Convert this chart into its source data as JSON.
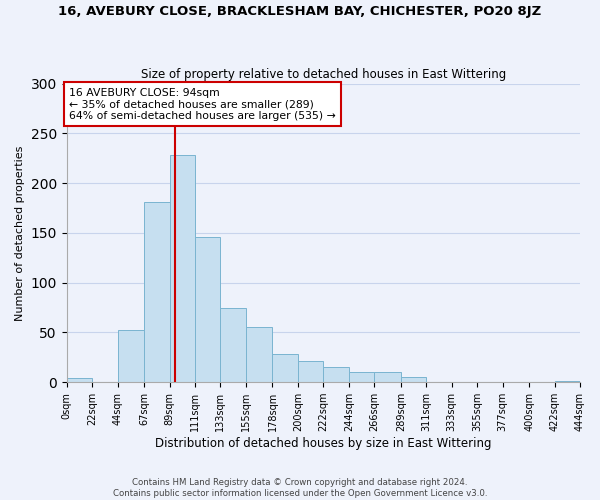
{
  "title": "16, AVEBURY CLOSE, BRACKLESHAM BAY, CHICHESTER, PO20 8JZ",
  "subtitle": "Size of property relative to detached houses in East Wittering",
  "xlabel": "Distribution of detached houses by size in East Wittering",
  "ylabel": "Number of detached properties",
  "bar_color": "#c6dff0",
  "bar_edge_color": "#7ab4d0",
  "vline_color": "#cc0000",
  "vline_x": 94,
  "annotation_title": "16 AVEBURY CLOSE: 94sqm",
  "annotation_line1": "← 35% of detached houses are smaller (289)",
  "annotation_line2": "64% of semi-detached houses are larger (535) →",
  "annotation_box_color": "#ffffff",
  "annotation_box_edge": "#cc0000",
  "bin_edges": [
    0,
    22,
    44,
    67,
    89,
    111,
    133,
    155,
    178,
    200,
    222,
    244,
    266,
    289,
    311,
    333,
    355,
    377,
    400,
    422,
    444
  ],
  "bin_counts": [
    4,
    0,
    52,
    181,
    228,
    146,
    75,
    55,
    28,
    21,
    15,
    10,
    10,
    5,
    0,
    0,
    0,
    0,
    0,
    1
  ],
  "tick_labels": [
    "0sqm",
    "22sqm",
    "44sqm",
    "67sqm",
    "89sqm",
    "111sqm",
    "133sqm",
    "155sqm",
    "178sqm",
    "200sqm",
    "222sqm",
    "244sqm",
    "266sqm",
    "289sqm",
    "311sqm",
    "333sqm",
    "355sqm",
    "377sqm",
    "400sqm",
    "422sqm",
    "444sqm"
  ],
  "ylim": [
    0,
    300
  ],
  "yticks": [
    0,
    50,
    100,
    150,
    200,
    250,
    300
  ],
  "footer_line1": "Contains HM Land Registry data © Crown copyright and database right 2024.",
  "footer_line2": "Contains public sector information licensed under the Open Government Licence v3.0.",
  "background_color": "#eef2fb",
  "grid_color": "#c8d4ec"
}
